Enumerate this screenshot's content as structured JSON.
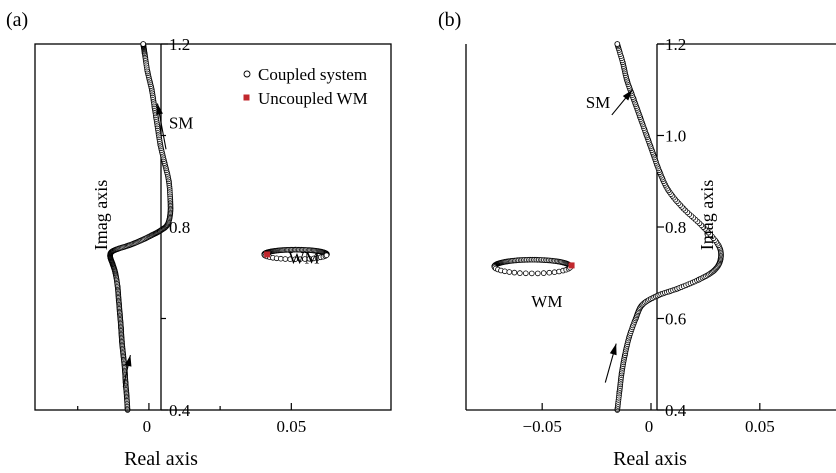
{
  "chart_data": [
    {
      "type": "scatter",
      "panel_label": "(a)",
      "xlabel": "Real axis",
      "ylabel": "Imag axis",
      "xlim": [
        -0.04,
        0.085
      ],
      "ylim": [
        0.4,
        1.2
      ],
      "x_ticks": [
        {
          "value": 0,
          "label": "0"
        },
        {
          "value": 0.05,
          "label": "0.05"
        }
      ],
      "y_ticks": [
        {
          "value": 0.4,
          "label": "0.4"
        },
        {
          "value": 0.8,
          "label": "0.8"
        },
        {
          "value": 1.2,
          "label": "1.2"
        }
      ],
      "y_minor_ticks": [
        0.6,
        1.0
      ],
      "x_minor_ticks": [
        -0.025,
        0.025
      ],
      "legend": {
        "position": "top-right",
        "entries": [
          {
            "label": "Coupled system",
            "marker": "open-circle",
            "color": "#000000"
          },
          {
            "label": "Uncoupled WM",
            "marker": "filled-square",
            "color": "#c1272d"
          }
        ]
      },
      "annotations": [
        {
          "text": "SM",
          "x": 0.007,
          "y": 1.015
        },
        {
          "text": "WM",
          "x": 0.049,
          "y": 0.72
        }
      ],
      "arrows": [
        {
          "from": [
            -0.009,
            0.45
          ],
          "to": [
            -0.0065,
            0.52
          ]
        },
        {
          "from": [
            0.006,
            0.97
          ],
          "to": [
            0.003,
            1.07
          ]
        }
      ],
      "series": [
        {
          "name": "Coupled system",
          "kind": "SM",
          "points": [
            [
              -0.0075,
              0.4
            ],
            [
              -0.0078,
              0.43
            ],
            [
              -0.0082,
              0.46
            ],
            [
              -0.0085,
              0.49
            ],
            [
              -0.009,
              0.52
            ],
            [
              -0.0095,
              0.55
            ],
            [
              -0.0098,
              0.58
            ],
            [
              -0.0102,
              0.61
            ],
            [
              -0.0106,
              0.64
            ],
            [
              -0.011,
              0.67
            ],
            [
              -0.0118,
              0.7
            ],
            [
              -0.0128,
              0.72
            ],
            [
              -0.0136,
              0.735
            ],
            [
              -0.0132,
              0.745
            ],
            [
              -0.011,
              0.752
            ],
            [
              -0.007,
              0.76
            ],
            [
              -0.003,
              0.77
            ],
            [
              0.001,
              0.782
            ],
            [
              0.004,
              0.792
            ],
            [
              0.0065,
              0.805
            ],
            [
              0.0075,
              0.83
            ],
            [
              0.0075,
              0.86
            ],
            [
              0.007,
              0.9
            ],
            [
              0.0055,
              0.94
            ],
            [
              0.004,
              0.98
            ],
            [
              0.003,
              1.02
            ],
            [
              0.002,
              1.06
            ],
            [
              0.001,
              1.1
            ],
            [
              -0.0005,
              1.14
            ],
            [
              -0.0015,
              1.18
            ],
            [
              -0.002,
              1.2
            ]
          ]
        },
        {
          "name": "Coupled system",
          "kind": "WM",
          "center": [
            0.0515,
            0.74
          ],
          "rx": 0.011,
          "ry": 0.0105
        },
        {
          "name": "Uncoupled WM",
          "points": [
            [
              0.0415,
              0.74
            ]
          ]
        }
      ]
    },
    {
      "type": "scatter",
      "panel_label": "(b)",
      "xlabel": "Real axis",
      "ylabel": "Imag axis",
      "xlim": [
        -0.085,
        0.085
      ],
      "ylim": [
        0.4,
        1.2
      ],
      "x_ticks": [
        {
          "value": -0.05,
          "label": "−0.05"
        },
        {
          "value": 0,
          "label": "0"
        },
        {
          "value": 0.05,
          "label": "0.05"
        }
      ],
      "y_ticks": [
        {
          "value": 0.4,
          "label": "0.4"
        },
        {
          "value": 0.6,
          "label": "0.6"
        },
        {
          "value": 0.8,
          "label": "0.8"
        },
        {
          "value": 1.0,
          "label": "1.0"
        },
        {
          "value": 1.2,
          "label": "1.2"
        }
      ],
      "annotations": [
        {
          "text": "SM",
          "x": -0.03,
          "y": 1.06
        },
        {
          "text": "WM",
          "x": -0.055,
          "y": 0.625
        }
      ],
      "arrows": [
        {
          "from": [
            -0.021,
            0.46
          ],
          "to": [
            -0.016,
            0.545
          ]
        },
        {
          "from": [
            -0.018,
            1.045
          ],
          "to": [
            -0.0085,
            1.1
          ]
        }
      ],
      "series": [
        {
          "name": "Coupled system",
          "kind": "SM",
          "points": [
            [
              -0.0155,
              0.4
            ],
            [
              -0.0145,
              0.44
            ],
            [
              -0.0135,
              0.48
            ],
            [
              -0.012,
              0.52
            ],
            [
              -0.01,
              0.56
            ],
            [
              -0.007,
              0.6
            ],
            [
              -0.004,
              0.63
            ],
            [
              0.003,
              0.65
            ],
            [
              0.012,
              0.665
            ],
            [
              0.022,
              0.685
            ],
            [
              0.029,
              0.705
            ],
            [
              0.032,
              0.73
            ],
            [
              0.031,
              0.76
            ],
            [
              0.024,
              0.8
            ],
            [
              0.015,
              0.84
            ],
            [
              0.008,
              0.88
            ],
            [
              0.004,
              0.92
            ],
            [
              0.001,
              0.96
            ],
            [
              -0.002,
              1.0
            ],
            [
              -0.005,
              1.04
            ],
            [
              -0.008,
              1.08
            ],
            [
              -0.011,
              1.12
            ],
            [
              -0.013,
              1.16
            ],
            [
              -0.0155,
              1.2
            ]
          ]
        },
        {
          "name": "Coupled system",
          "kind": "WM",
          "center": [
            -0.0545,
            0.7135
          ],
          "rx": 0.0175,
          "ry": 0.015
        },
        {
          "name": "Uncoupled WM",
          "points": [
            [
              -0.0365,
              0.716
            ]
          ]
        }
      ]
    }
  ]
}
